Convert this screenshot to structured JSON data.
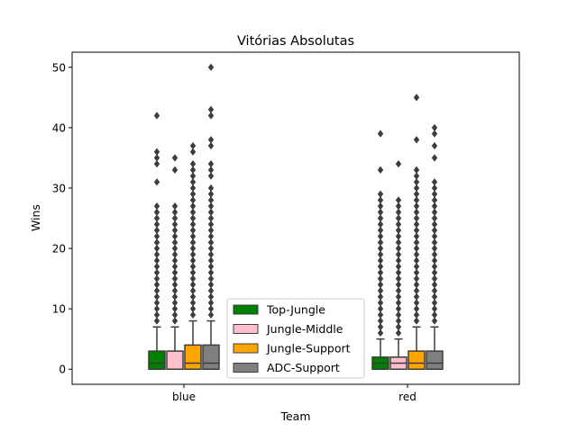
{
  "chart_data": {
    "type": "box",
    "title": "Vitórias Absolutas",
    "xlabel": "Team",
    "ylabel": "Wins",
    "ylim": [
      -2.5,
      52.5
    ],
    "yticks": [
      0,
      10,
      20,
      30,
      40,
      50
    ],
    "categories": [
      "blue",
      "red"
    ],
    "legend": {
      "position": "lower center",
      "entries": [
        "Top-Jungle",
        "Jungle-Middle",
        "Jungle-Support",
        "ADC-Support"
      ]
    },
    "colors": {
      "Top-Jungle": "#008000",
      "Jungle-Middle": "#ffc0cb",
      "Jungle-Support": "#ffa500",
      "ADC-Support": "#808080"
    },
    "series": [
      {
        "name": "Top-Jungle",
        "boxes": [
          {
            "min": 0,
            "q1": 0,
            "median": 1,
            "q3": 3,
            "max": 7,
            "outliers": [
              8,
              9,
              10,
              11,
              12,
              13,
              14,
              15,
              16,
              17,
              18,
              19,
              20,
              21,
              22,
              23,
              24,
              25,
              26,
              27,
              31,
              34,
              35,
              36,
              42
            ]
          },
          {
            "min": 0,
            "q1": 0,
            "median": 1,
            "q3": 2,
            "max": 5,
            "outliers": [
              6,
              7,
              8,
              9,
              10,
              11,
              12,
              13,
              14,
              15,
              16,
              17,
              18,
              19,
              20,
              21,
              22,
              23,
              24,
              25,
              26,
              27,
              28,
              29,
              33,
              39
            ]
          }
        ]
      },
      {
        "name": "Jungle-Middle",
        "boxes": [
          {
            "min": 0,
            "q1": 0,
            "median": 0,
            "q3": 3,
            "max": 7,
            "outliers": [
              8,
              9,
              10,
              11,
              12,
              13,
              14,
              15,
              16,
              17,
              18,
              19,
              20,
              21,
              22,
              23,
              24,
              25,
              26,
              27,
              33,
              35
            ]
          },
          {
            "min": 0,
            "q1": 0,
            "median": 1,
            "q3": 2,
            "max": 5,
            "outliers": [
              6,
              7,
              8,
              9,
              10,
              11,
              12,
              13,
              14,
              15,
              16,
              17,
              18,
              19,
              20,
              21,
              22,
              23,
              24,
              25,
              26,
              27,
              28,
              34
            ]
          }
        ]
      },
      {
        "name": "Jungle-Support",
        "boxes": [
          {
            "min": 0,
            "q1": 0,
            "median": 1,
            "q3": 4,
            "max": 8,
            "outliers": [
              9,
              10,
              11,
              12,
              13,
              14,
              15,
              16,
              17,
              18,
              19,
              20,
              21,
              22,
              23,
              24,
              25,
              26,
              27,
              28,
              29,
              30,
              31,
              32,
              33,
              34,
              36,
              37
            ]
          },
          {
            "min": 0,
            "q1": 0,
            "median": 1,
            "q3": 3,
            "max": 7,
            "outliers": [
              8,
              9,
              10,
              11,
              12,
              13,
              14,
              15,
              16,
              17,
              18,
              19,
              20,
              21,
              22,
              23,
              24,
              25,
              26,
              27,
              28,
              29,
              30,
              31,
              32,
              33,
              38,
              45
            ]
          }
        ]
      },
      {
        "name": "ADC-Support",
        "boxes": [
          {
            "min": 0,
            "q1": 0,
            "median": 1,
            "q3": 4,
            "max": 8,
            "outliers": [
              9,
              10,
              11,
              12,
              13,
              14,
              15,
              16,
              17,
              18,
              19,
              20,
              21,
              22,
              23,
              24,
              25,
              26,
              27,
              28,
              29,
              30,
              32,
              33,
              34,
              37,
              38,
              42,
              43,
              50
            ]
          },
          {
            "min": 0,
            "q1": 0,
            "median": 1,
            "q3": 3,
            "max": 7,
            "outliers": [
              8,
              9,
              10,
              11,
              12,
              13,
              14,
              15,
              16,
              17,
              18,
              19,
              20,
              21,
              22,
              23,
              24,
              25,
              26,
              27,
              28,
              29,
              30,
              31,
              35,
              37,
              39,
              40
            ]
          }
        ]
      }
    ]
  }
}
